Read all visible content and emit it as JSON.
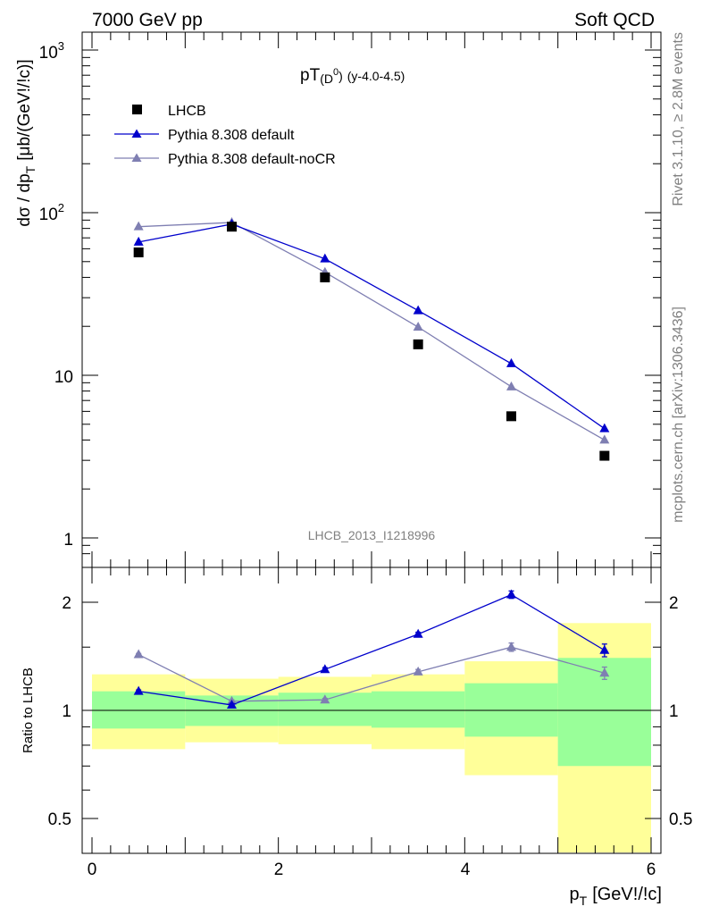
{
  "header": {
    "left": "7000 GeV pp",
    "right": "Soft QCD"
  },
  "side_labels": {
    "rivet": "Rivet 3.1.10, ≥ 2.8M events",
    "mcplots": "mcplots.cern.ch [arXiv:1306.3436]"
  },
  "colors": {
    "lhcb": "#000000",
    "pythia_default": "#0000cc",
    "pythia_nocr": "#7f7fb2",
    "band_inner": "#99ff99",
    "band_outer": "#ffff99"
  },
  "chart_data": [
    {
      "type": "scatter",
      "title_main": "pT",
      "title_sub": "(D",
      "title_sup": "0",
      "title_sub_close": ")",
      "title_rest": "(y-4.0-4.5)",
      "ylabel_main": "dσ / dp",
      "ylabel_sub": "T",
      "ylabel_unit": "[μb/(GeV!/!c)]",
      "yscale": "log",
      "ylim": [
        0.75,
        1300
      ],
      "xlim": [
        -0.1,
        6.1
      ],
      "y_tick_labels": [
        "1",
        "10",
        "10",
        "10"
      ],
      "y_tick_exps": [
        "2",
        "3"
      ],
      "watermark": "LHCB_2013_I1218996",
      "legend": {
        "placement": "top-left",
        "entries": [
          "LHCB",
          "Pythia 8.308 default",
          "Pythia 8.308 default-noCR"
        ]
      },
      "series": [
        {
          "name": "LHCB",
          "marker": "square",
          "x": [
            0.5,
            1.5,
            2.5,
            3.5,
            4.5,
            5.5
          ],
          "y": [
            57,
            82,
            40,
            15.5,
            5.6,
            3.2
          ]
        },
        {
          "name": "Pythia 8.308 default",
          "marker": "triangle",
          "x": [
            0.5,
            1.5,
            2.5,
            3.5,
            4.5,
            5.5
          ],
          "y": [
            66,
            85,
            52,
            25,
            11.8,
            4.7
          ]
        },
        {
          "name": "Pythia 8.308 default-noCR",
          "marker": "triangle",
          "x": [
            0.5,
            1.5,
            2.5,
            3.5,
            4.5,
            5.5
          ],
          "y": [
            82,
            87,
            43,
            19.8,
            8.5,
            4.0
          ]
        }
      ]
    },
    {
      "type": "line",
      "ylabel": "Ratio to LHCB",
      "xlabel_main": "p",
      "xlabel_sub": "T",
      "xlabel_unit": "[GeV!/!c]",
      "yscale": "log",
      "ylim": [
        0.4,
        2.35
      ],
      "xlim": [
        -0.1,
        6.1
      ],
      "x_tick_labels": [
        "0",
        "2",
        "4",
        "6"
      ],
      "y_tick_labels": [
        "0.5",
        "1",
        "2"
      ],
      "bands": [
        {
          "x0": 0,
          "x1": 1,
          "inner": [
            0.89,
            1.13
          ],
          "outer": [
            0.78,
            1.26
          ]
        },
        {
          "x0": 1,
          "x1": 2,
          "inner": [
            0.905,
            1.1
          ],
          "outer": [
            0.815,
            1.225
          ]
        },
        {
          "x0": 2,
          "x1": 3,
          "inner": [
            0.905,
            1.12
          ],
          "outer": [
            0.805,
            1.24
          ]
        },
        {
          "x0": 3,
          "x1": 4,
          "inner": [
            0.895,
            1.13
          ],
          "outer": [
            0.78,
            1.26
          ]
        },
        {
          "x0": 4,
          "x1": 5,
          "inner": [
            0.845,
            1.19
          ],
          "outer": [
            0.66,
            1.37
          ]
        },
        {
          "x0": 5,
          "x1": 6,
          "inner": [
            0.7,
            1.4
          ],
          "outer": [
            0.4,
            1.75
          ]
        }
      ],
      "series": [
        {
          "name": "Pythia 8.308 default",
          "x": [
            0.5,
            1.5,
            2.5,
            3.5,
            4.5,
            5.5
          ],
          "y": [
            1.13,
            1.035,
            1.3,
            1.63,
            2.1,
            1.47
          ],
          "err": [
            0.01,
            0.01,
            0.015,
            0.02,
            0.05,
            0.06
          ]
        },
        {
          "name": "Pythia 8.308 default-noCR",
          "x": [
            0.5,
            1.5,
            2.5,
            3.5,
            4.5,
            5.5
          ],
          "y": [
            1.43,
            1.06,
            1.07,
            1.28,
            1.5,
            1.27
          ],
          "err": [
            0.01,
            0.01,
            0.01,
            0.02,
            0.04,
            0.05
          ]
        }
      ]
    }
  ]
}
